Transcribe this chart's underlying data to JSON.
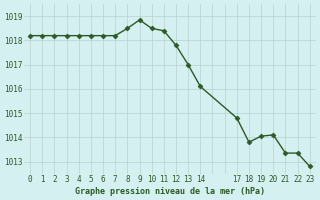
{
  "x": [
    0,
    1,
    2,
    3,
    4,
    5,
    6,
    7,
    8,
    9,
    10,
    11,
    12,
    13,
    14,
    17,
    18,
    19,
    20,
    21,
    22,
    23
  ],
  "y": [
    1018.2,
    1018.2,
    1018.2,
    1018.2,
    1018.2,
    1018.2,
    1018.2,
    1018.2,
    1018.5,
    1018.85,
    1018.5,
    1018.4,
    1017.8,
    1017.0,
    1016.1,
    1014.8,
    1013.8,
    1014.05,
    1014.1,
    1013.35,
    1013.35,
    1012.8
  ],
  "line_color": "#2d5a27",
  "marker_color": "#2d5a27",
  "bg_color": "#d4f0f0",
  "grid_color": "#b8d0d0",
  "xlabel": "Graphe pression niveau de la mer (hPa)",
  "xlabel_color": "#2d5a27",
  "tick_color": "#2d5a27",
  "ylim": [
    1012.5,
    1019.5
  ],
  "yticks": [
    1013,
    1014,
    1015,
    1016,
    1017,
    1018,
    1019
  ],
  "xtick_positions": [
    0,
    1,
    2,
    3,
    4,
    5,
    6,
    7,
    8,
    9,
    10,
    11,
    12,
    13,
    14,
    17,
    18,
    19,
    20,
    21,
    22,
    23
  ],
  "xtick_labels": [
    "0",
    "1",
    "2",
    "3",
    "4",
    "5",
    "6",
    "7",
    "8",
    "9",
    "10",
    "11",
    "12",
    "13",
    "14",
    "17",
    "18",
    "19",
    "20",
    "21",
    "22",
    "23"
  ]
}
